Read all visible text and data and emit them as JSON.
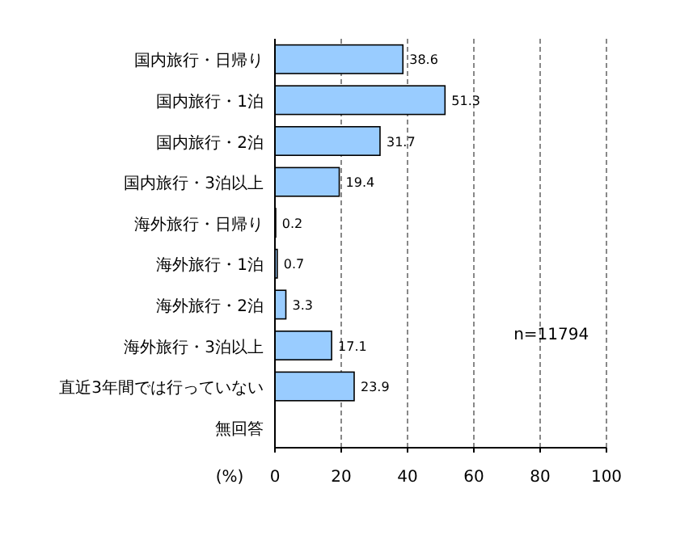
{
  "chart_data": {
    "type": "bar",
    "orientation": "horizontal",
    "categories": [
      "国内旅行・日帰り",
      "国内旅行・1泊",
      "国内旅行・2泊",
      "国内旅行・3泊以上",
      "海外旅行・日帰り",
      "海外旅行・1泊",
      "海外旅行・2泊",
      "海外旅行・3泊以上",
      "直近3年間では行っていない",
      "無回答"
    ],
    "values": [
      38.6,
      51.3,
      31.7,
      19.4,
      0.2,
      0.7,
      3.3,
      17.1,
      23.9,
      null
    ],
    "value_labels": [
      "38.6",
      "51.3",
      "31.7",
      "19.4",
      "0.2",
      "0.7",
      "3.3",
      "17.1",
      "23.9",
      null
    ],
    "color": "#99ccff",
    "xlim": [
      0,
      100
    ],
    "xticks": [
      0,
      20,
      40,
      60,
      80,
      100
    ],
    "xlabel": "(%)",
    "grid": "x",
    "annotations": [
      "n=11794"
    ]
  }
}
